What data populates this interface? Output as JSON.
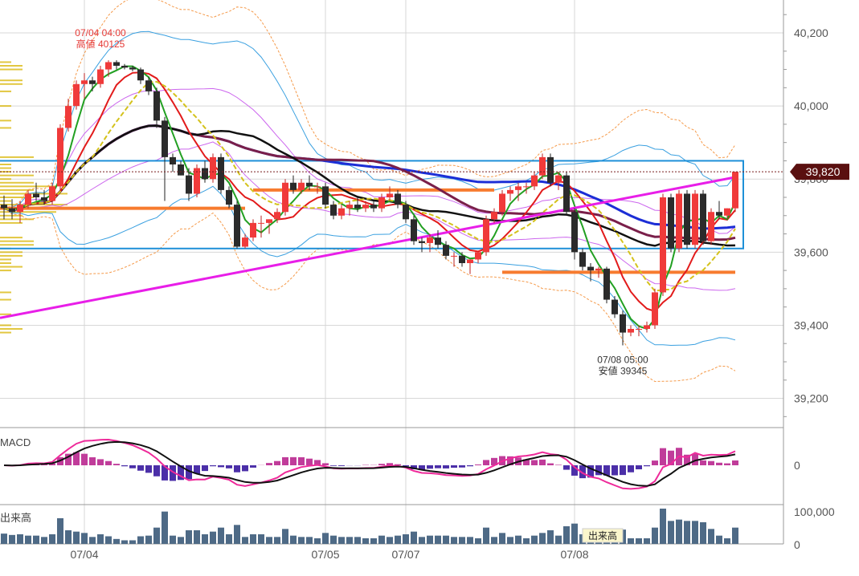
{
  "chart_data": {
    "type": "candlestick",
    "price_axis": {
      "ticks": [
        40200,
        40000,
        39800,
        39600,
        39400,
        39200
      ],
      "tick_labels": [
        "40,200",
        "40,000",
        "39,800",
        "39,600",
        "39,400",
        "39,200"
      ],
      "range": [
        39120,
        40290
      ]
    },
    "x_labels": [
      {
        "label": "07/04",
        "index": 10
      },
      {
        "label": "07/05",
        "index": 40
      },
      {
        "label": "07/07",
        "index": 50
      },
      {
        "label": "07/08",
        "index": 71
      }
    ],
    "current_price": {
      "value": 39820,
      "label": "39,820"
    },
    "annotations": [
      {
        "line1": "07/04 04:00",
        "line2": "高値 40125",
        "index": 12,
        "value": 40125,
        "color": "#e53935"
      },
      {
        "line1": "07/08 05:00",
        "line2": "安値 39345",
        "index": 77,
        "value": 39345,
        "color": "#333333"
      }
    ],
    "candles": [
      [
        39730,
        39755,
        39690,
        39720
      ],
      [
        39720,
        39745,
        39690,
        39710
      ],
      [
        39710,
        39740,
        39680,
        39730
      ],
      [
        39730,
        39770,
        39720,
        39760
      ],
      [
        39760,
        39790,
        39740,
        39750
      ],
      [
        39750,
        39770,
        39730,
        39740
      ],
      [
        39740,
        39790,
        39730,
        39780
      ],
      [
        39780,
        39950,
        39770,
        39940
      ],
      [
        39940,
        40020,
        39930,
        40000
      ],
      [
        40000,
        40070,
        39990,
        40060
      ],
      [
        40060,
        40090,
        40020,
        40070
      ],
      [
        40070,
        40080,
        40040,
        40060
      ],
      [
        40060,
        40110,
        40050,
        40100
      ],
      [
        40100,
        40125,
        40080,
        40120
      ],
      [
        40120,
        40125,
        40100,
        40110
      ],
      [
        40110,
        40115,
        40100,
        40105
      ],
      [
        40105,
        40110,
        40095,
        40100
      ],
      [
        40100,
        40105,
        40060,
        40070
      ],
      [
        40070,
        40080,
        40030,
        40040
      ],
      [
        40040,
        40050,
        39940,
        39960
      ],
      [
        39960,
        39970,
        39740,
        39860
      ],
      [
        39860,
        39870,
        39820,
        39840
      ],
      [
        39840,
        39850,
        39810,
        39810
      ],
      [
        39810,
        39830,
        39740,
        39760
      ],
      [
        39760,
        39840,
        39750,
        39830
      ],
      [
        39830,
        39850,
        39790,
        39800
      ],
      [
        39800,
        39870,
        39790,
        39860
      ],
      [
        39860,
        39870,
        39760,
        39770
      ],
      [
        39770,
        39780,
        39720,
        39730
      ],
      [
        39730,
        39740,
        39610,
        39615
      ],
      [
        39615,
        39650,
        39610,
        39640
      ],
      [
        39640,
        39690,
        39630,
        39680
      ],
      [
        39680,
        39700,
        39640,
        39680
      ],
      [
        39680,
        39690,
        39650,
        39690
      ],
      [
        39690,
        39720,
        39680,
        39710
      ],
      [
        39710,
        39800,
        39700,
        39790
      ],
      [
        39790,
        39810,
        39760,
        39770
      ],
      [
        39770,
        39800,
        39760,
        39790
      ],
      [
        39790,
        39810,
        39770,
        39780
      ],
      [
        39780,
        39790,
        39760,
        39780
      ],
      [
        39780,
        39790,
        39720,
        39730
      ],
      [
        39730,
        39740,
        39690,
        39700
      ],
      [
        39700,
        39730,
        39690,
        39720
      ],
      [
        39720,
        39740,
        39700,
        39730
      ],
      [
        39730,
        39750,
        39710,
        39720
      ],
      [
        39720,
        39740,
        39710,
        39730
      ],
      [
        39730,
        39740,
        39710,
        39720
      ],
      [
        39720,
        39760,
        39710,
        39750
      ],
      [
        39750,
        39780,
        39740,
        39760
      ],
      [
        39760,
        39770,
        39720,
        39730
      ],
      [
        39730,
        39740,
        39680,
        39690
      ],
      [
        39690,
        39700,
        39620,
        39630
      ],
      [
        39630,
        39640,
        39600,
        39625
      ],
      [
        39625,
        39650,
        39600,
        39640
      ],
      [
        39640,
        39660,
        39610,
        39620
      ],
      [
        39620,
        39630,
        39580,
        39590
      ],
      [
        39590,
        39600,
        39560,
        39590
      ],
      [
        39590,
        39600,
        39560,
        39570
      ],
      [
        39570,
        39580,
        39540,
        39580
      ],
      [
        39580,
        39600,
        39570,
        39600
      ],
      [
        39600,
        39700,
        39590,
        39690
      ],
      [
        39690,
        39720,
        39680,
        39710
      ],
      [
        39710,
        39770,
        39700,
        39760
      ],
      [
        39760,
        39780,
        39740,
        39770
      ],
      [
        39770,
        39790,
        39740,
        39780
      ],
      [
        39780,
        39790,
        39760,
        39780
      ],
      [
        39780,
        39820,
        39770,
        39810
      ],
      [
        39810,
        39870,
        39800,
        39860
      ],
      [
        39860,
        39870,
        39780,
        39790
      ],
      [
        39790,
        39820,
        39770,
        39810
      ],
      [
        39810,
        39820,
        39700,
        39710
      ],
      [
        39710,
        39720,
        39580,
        39600
      ],
      [
        39600,
        39610,
        39550,
        39560
      ],
      [
        39560,
        39570,
        39520,
        39550
      ],
      [
        39550,
        39560,
        39530,
        39555
      ],
      [
        39555,
        39560,
        39460,
        39470
      ],
      [
        39470,
        39480,
        39420,
        39430
      ],
      [
        39430,
        39440,
        39345,
        39380
      ],
      [
        39380,
        39400,
        39370,
        39390
      ],
      [
        39390,
        39400,
        39370,
        39390
      ],
      [
        39390,
        39410,
        39380,
        39400
      ],
      [
        39400,
        39500,
        39390,
        39490
      ],
      [
        39490,
        39760,
        39480,
        39750
      ],
      [
        39750,
        39760,
        39600,
        39610
      ],
      [
        39610,
        39770,
        39600,
        39760
      ],
      [
        39760,
        39770,
        39610,
        39620
      ],
      [
        39620,
        39770,
        39610,
        39760
      ],
      [
        39760,
        39770,
        39620,
        39630
      ],
      [
        39630,
        39720,
        39620,
        39710
      ],
      [
        39710,
        39740,
        39690,
        39700
      ],
      [
        39700,
        39720,
        39690,
        39720
      ],
      [
        39720,
        39820,
        39710,
        39820
      ]
    ],
    "box": {
      "from_index": -2,
      "to_index": 92,
      "top": 39850,
      "bottom": 39610,
      "color": "#1e90d8"
    },
    "support_lines": [
      {
        "from": -2,
        "to": 30,
        "value": 39720
      },
      {
        "from": 31,
        "to": 61,
        "value": 39770
      },
      {
        "from": 62,
        "to": 91,
        "value": 39545
      }
    ],
    "indicators": {
      "macd": {
        "label": "MACD",
        "zero_label": "0"
      },
      "volume": {
        "label": "出来高",
        "tick_label": "100,000",
        "zero_label": "0",
        "tooltip": "出来高"
      }
    },
    "colors": {
      "up": "#f03a3a",
      "down": "#2b2b2b",
      "current_price_bg": "#5a1010",
      "ma_fast": "#22a022",
      "ma_mid": "#e21b1b",
      "ma_black": "#111111",
      "ma_blue": "#1c2ed6",
      "ma_purple": "#7a1f4a",
      "ma_magenta": "#e81ee8",
      "support": "#f77b2f",
      "box": "#1e90d8"
    }
  }
}
